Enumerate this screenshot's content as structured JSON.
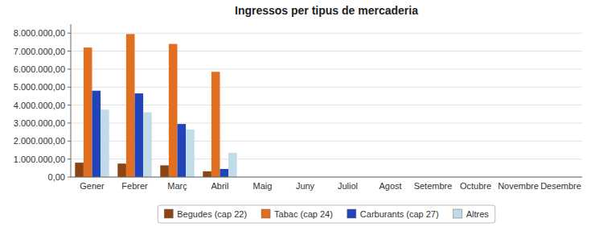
{
  "chart_data": {
    "type": "bar",
    "title": "Ingressos per tipus de mercaderia",
    "categories": [
      "Gener",
      "Febrer",
      "Març",
      "Abril",
      "Maig",
      "Juny",
      "Juliol",
      "Agost",
      "Setembre",
      "Octubre",
      "Novembre",
      "Desembre"
    ],
    "series": [
      {
        "name": "Begudes (cap 22)",
        "color": "#8B4513",
        "values": [
          800000,
          750000,
          650000,
          320000,
          0,
          0,
          0,
          0,
          0,
          0,
          0,
          0
        ]
      },
      {
        "name": "Tabac (cap 24)",
        "color": "#E07020",
        "values": [
          7200000,
          7950000,
          7400000,
          5850000,
          0,
          0,
          0,
          0,
          0,
          0,
          0,
          0
        ]
      },
      {
        "name": "Carburants (cap 27)",
        "color": "#2244BB",
        "values": [
          4800000,
          4650000,
          2950000,
          450000,
          0,
          0,
          0,
          0,
          0,
          0,
          0,
          0
        ]
      },
      {
        "name": "Altres",
        "color": "#C0DCE8",
        "values": [
          3750000,
          3600000,
          2650000,
          1350000,
          0,
          0,
          0,
          0,
          0,
          0,
          0,
          0
        ]
      }
    ],
    "ylim": [
      0,
      8500000
    ],
    "yticks": [
      {
        "value": 0,
        "label": "0,00"
      },
      {
        "value": 1000000,
        "label": "1.000.000,00"
      },
      {
        "value": 2000000,
        "label": "2.000.000,00"
      },
      {
        "value": 3000000,
        "label": "3.000.000,00"
      },
      {
        "value": 4000000,
        "label": "4.000.000,00"
      },
      {
        "value": 5000000,
        "label": "5.000.000,00"
      },
      {
        "value": 6000000,
        "label": "6.000.000,00"
      },
      {
        "value": 7000000,
        "label": "7.000.000,00"
      },
      {
        "value": 8000000,
        "label": "8.000.000,00"
      }
    ],
    "grid": true,
    "legend": "bottom"
  }
}
